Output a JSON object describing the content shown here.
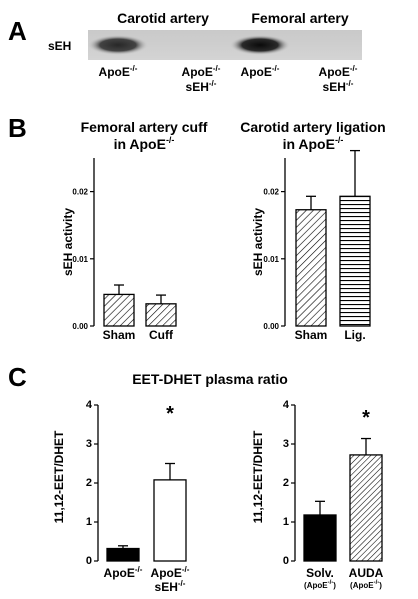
{
  "panels": {
    "a": "A",
    "b": "B",
    "c": "C"
  },
  "blot": {
    "row_label": "sEH",
    "group_labels": [
      "Carotid artery",
      "Femoral artery"
    ],
    "lanes": [
      {
        "line1": "ApoE",
        "sup1": "-/-",
        "line2": "",
        "sup2": "",
        "band_intensity": 0.85
      },
      {
        "line1": "ApoE",
        "sup1": "-/-",
        "line2": "sEH",
        "sup2": "-/-",
        "band_intensity": 0.0
      },
      {
        "line1": "ApoE",
        "sup1": "-/-",
        "line2": "",
        "sup2": "",
        "band_intensity": 1.0
      },
      {
        "line1": "ApoE",
        "sup1": "-/-",
        "line2": "sEH",
        "sup2": "-/-",
        "band_intensity": 0.0
      }
    ]
  },
  "chart_data": [
    {
      "type": "bar",
      "title": "Femoral artery cuff",
      "title_line2": "in ApoE",
      "title_sup": "-/-",
      "ylabel": "sEH activity",
      "ylim": [
        0,
        0.025
      ],
      "yticks": [
        "0.00",
        "0.01",
        "0.02"
      ],
      "ytick_values": [
        0,
        0.01,
        0.02
      ],
      "categories": [
        "Sham",
        "Cuff"
      ],
      "values": [
        0.0047,
        0.0033
      ],
      "errors": [
        0.0014,
        0.0013
      ],
      "fills": [
        "diag",
        "diag"
      ]
    },
    {
      "type": "bar",
      "title": "Carotid artery ligation",
      "title_line2": "in ApoE",
      "title_sup": "-/-",
      "ylabel": "sEH activity",
      "ylim": [
        0,
        0.025
      ],
      "yticks": [
        "0.00",
        "0.01",
        "0.02"
      ],
      "ytick_values": [
        0,
        0.01,
        0.02
      ],
      "categories": [
        "Sham",
        "Lig."
      ],
      "values": [
        0.0173,
        0.0193
      ],
      "errors": [
        0.002,
        0.0068
      ],
      "fills": [
        "diag",
        "horiz"
      ]
    },
    {
      "type": "bar",
      "title": "EET-DHET plasma ratio",
      "ylabel": "11,12-EET/DHET",
      "ylim": [
        0,
        4
      ],
      "yticks": [
        "0",
        "1",
        "2",
        "3",
        "4"
      ],
      "ytick_values": [
        0,
        1,
        2,
        3,
        4
      ],
      "categories": [
        "ApoE",
        "ApoE"
      ],
      "category_sups": [
        "-/-",
        "-/-"
      ],
      "category_line2": [
        "",
        "sEH"
      ],
      "category_line2_sups": [
        "",
        "-/-"
      ],
      "values": [
        0.32,
        2.08
      ],
      "errors": [
        0.07,
        0.42
      ],
      "fills": [
        "black",
        "white"
      ],
      "annotation": "*"
    },
    {
      "type": "bar",
      "ylabel": "11,12-EET/DHET",
      "ylim": [
        0,
        4
      ],
      "yticks": [
        "0",
        "1",
        "2",
        "3",
        "4"
      ],
      "ytick_values": [
        0,
        1,
        2,
        3,
        4
      ],
      "categories": [
        "Solv.",
        "AUDA"
      ],
      "category_line2": [
        "(ApoE",
        "(ApoE"
      ],
      "category_line2_sups": [
        "-/-",
        "-/-"
      ],
      "category_line2_end": [
        ")",
        ")"
      ],
      "values": [
        1.18,
        2.72
      ],
      "errors": [
        0.35,
        0.42
      ],
      "fills": [
        "black",
        "diagdense"
      ],
      "annotation": "*"
    }
  ]
}
